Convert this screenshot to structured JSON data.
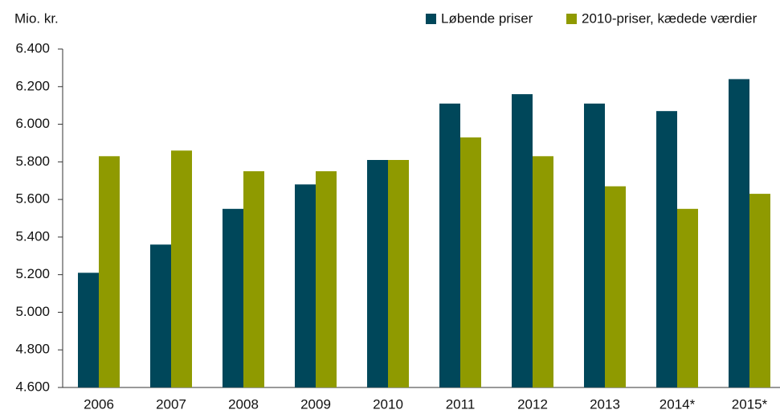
{
  "chart_data": {
    "type": "bar",
    "y_label": "Mio. kr.",
    "categories": [
      "2006",
      "2007",
      "2008",
      "2009",
      "2010",
      "2011",
      "2012",
      "2013",
      "2014*",
      "2015*"
    ],
    "series": [
      {
        "name": "Løbende priser",
        "color": "#00475a",
        "values": [
          5210,
          5360,
          5550,
          5680,
          5810,
          6110,
          6160,
          6110,
          6070,
          6240
        ]
      },
      {
        "name": "2010-priser, kædede værdier",
        "color": "#8f9a00",
        "values": [
          5830,
          5860,
          5750,
          5750,
          5810,
          5930,
          5830,
          5670,
          5550,
          5630
        ]
      }
    ],
    "ylim": [
      4600,
      6400
    ],
    "yticks": [
      {
        "value": 4600,
        "label": "4.600"
      },
      {
        "value": 4800,
        "label": "4.800"
      },
      {
        "value": 5000,
        "label": "5.000"
      },
      {
        "value": 5200,
        "label": "5.200"
      },
      {
        "value": 5400,
        "label": "5.400"
      },
      {
        "value": 5600,
        "label": "5.600"
      },
      {
        "value": 5800,
        "label": "5.800"
      },
      {
        "value": 6000,
        "label": "6.000"
      },
      {
        "value": 6200,
        "label": "6.200"
      },
      {
        "value": 6400,
        "label": "6.400"
      }
    ],
    "grid": false,
    "legend": "top-right"
  }
}
